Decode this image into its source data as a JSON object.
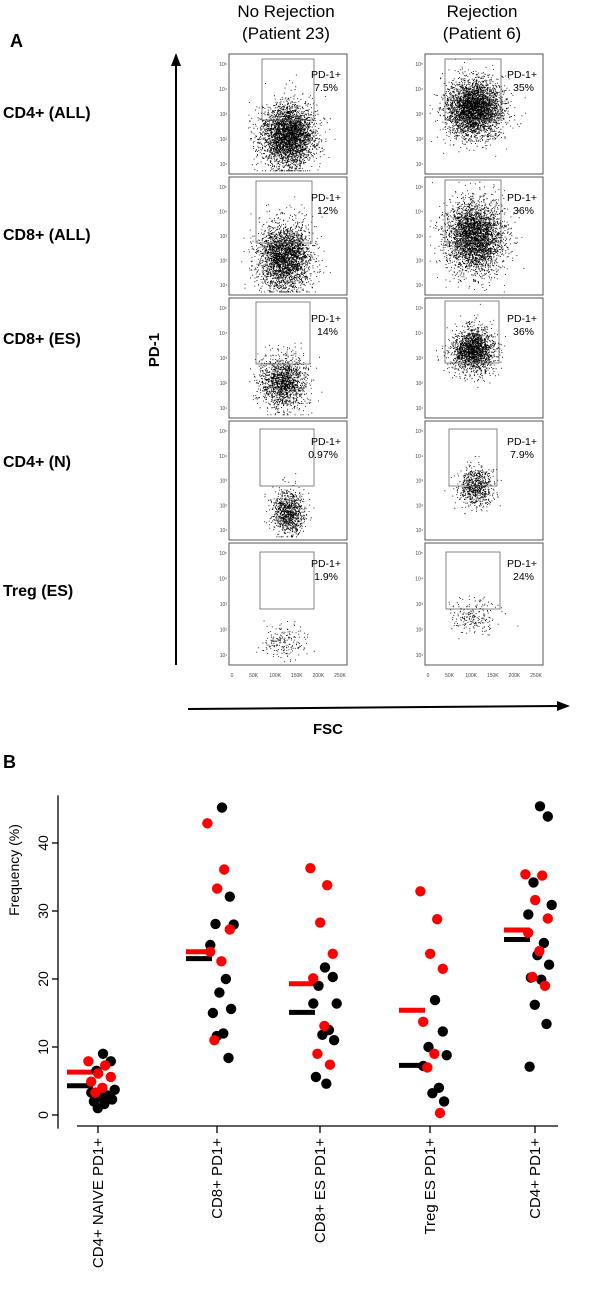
{
  "panel_a": {
    "letter": "A",
    "columns": [
      {
        "title_line1": "No Rejection",
        "title_line2": "(Patient 23)"
      },
      {
        "title_line1": "Rejection",
        "title_line2": "(Patient 6)"
      }
    ],
    "rows": [
      {
        "label": "CD4+ (ALL)",
        "gates": [
          {
            "name": "PD-1+",
            "pct": "7.5%"
          },
          {
            "name": "PD-1+",
            "pct": "35%"
          }
        ]
      },
      {
        "label": "CD8+ (ALL)",
        "gates": [
          {
            "name": "PD-1+",
            "pct": "12%"
          },
          {
            "name": "PD-1+",
            "pct": "36%"
          }
        ]
      },
      {
        "label": "CD8+ (ES)",
        "gates": [
          {
            "name": "PD-1+",
            "pct": "14%"
          },
          {
            "name": "PD-1+",
            "pct": "36%"
          }
        ]
      },
      {
        "label": "CD4+ (N)",
        "gates": [
          {
            "name": "PD-1+",
            "pct": "0.97%"
          },
          {
            "name": "PD-1+",
            "pct": "7.9%"
          }
        ]
      },
      {
        "label": "Treg (ES)",
        "gates": [
          {
            "name": "PD-1+",
            "pct": "1.9%"
          },
          {
            "name": "PD-1+",
            "pct": "24%"
          }
        ]
      }
    ],
    "y_axis_title": "PD-1",
    "x_axis_title": "FSC",
    "y_ticks": [
      "10⁵",
      "10⁴",
      "10³",
      "10²",
      "10¹"
    ],
    "x_ticks": [
      "0",
      "50K",
      "100K",
      "150K",
      "200K",
      "250K"
    ]
  },
  "panel_b": {
    "letter": "B"
  },
  "chart_data": {
    "type": "scatter",
    "title": "",
    "ylabel": "Frequency (%)",
    "xlabel": "",
    "ylim": [
      -2,
      47
    ],
    "yticks": [
      0,
      10,
      20,
      30,
      40
    ],
    "categories": [
      "CD4+ NAIVE PD1+",
      "CD8+ PD1+",
      "CD8+ ES PD1+",
      "Treg ES PD1+",
      "CD4+ PD1+"
    ],
    "colors": {
      "red_group": "#ff0000",
      "black_group": "#000000"
    },
    "groups": [
      {
        "category": "CD4+ NAIVE PD1+",
        "red_mean": 6.3,
        "black_mean": 4.3,
        "red_points": [
          7.9,
          7.3,
          6.1,
          5.6,
          4.9,
          4.0,
          3.3
        ],
        "black_points": [
          9.0,
          7.9,
          6.5,
          3.7,
          3.3,
          2.9,
          2.6,
          2.3,
          2.0,
          1.6,
          1.0
        ]
      },
      {
        "category": "CD8+ PD1+",
        "red_mean": 24.0,
        "black_mean": 23.0,
        "red_points": [
          42.9,
          36.1,
          33.3,
          27.3,
          24.0,
          22.6,
          11.0
        ],
        "black_points": [
          45.2,
          32.1,
          28.1,
          28.0,
          25.0,
          20.0,
          18.0,
          15.6,
          15.0,
          12.0,
          11.6,
          8.4
        ]
      },
      {
        "category": "CD8+ ES PD1+",
        "red_mean": 19.3,
        "black_mean": 15.1,
        "red_points": [
          36.3,
          33.8,
          28.3,
          23.7,
          20.1,
          13.1,
          9.0,
          7.4
        ],
        "black_points": [
          21.7,
          20.3,
          19.0,
          16.4,
          16.4,
          12.5,
          11.8,
          11.0,
          5.6,
          4.6
        ]
      },
      {
        "category": "Treg ES PD1+",
        "red_mean": 15.4,
        "black_mean": 7.3,
        "red_points": [
          32.9,
          28.8,
          23.7,
          21.5,
          13.7,
          9.0,
          7.0,
          0.3
        ],
        "black_points": [
          16.9,
          12.3,
          10.0,
          8.8,
          7.2,
          4.0,
          3.2,
          2.0
        ]
      },
      {
        "category": "CD4+ PD1+",
        "red_mean": 27.2,
        "black_mean": 25.8,
        "red_points": [
          35.4,
          35.2,
          31.6,
          28.9,
          26.8,
          24.1,
          20.3,
          19.0
        ],
        "black_points": [
          45.4,
          43.9,
          34.2,
          30.9,
          29.5,
          25.3,
          23.5,
          22.1,
          20.2,
          19.9,
          16.2,
          13.4,
          7.1
        ]
      }
    ]
  }
}
